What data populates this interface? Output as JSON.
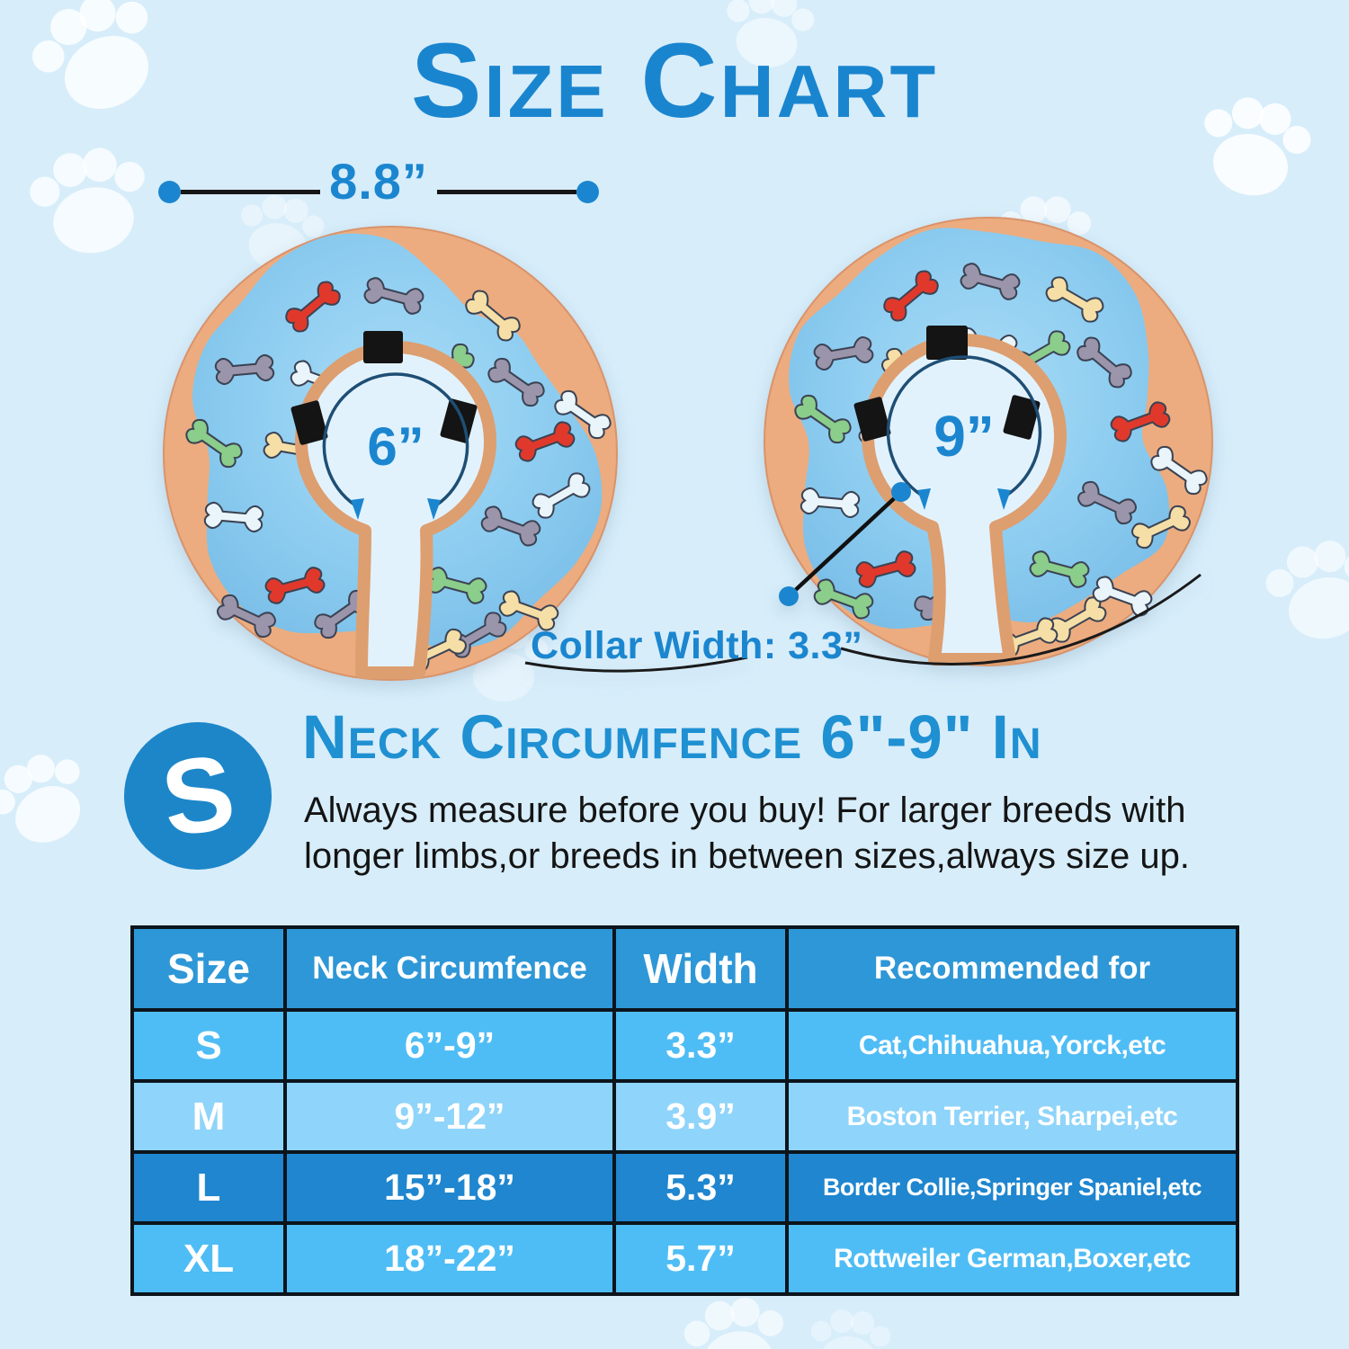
{
  "page": {
    "title": "Size Chart",
    "background_color": "#d7edfa",
    "accent_color": "#1b86cf"
  },
  "hero": {
    "outer_width": "8.8”",
    "left_donut": {
      "inner_circumference": "6”"
    },
    "right_donut": {
      "inner_circumference": "9”"
    },
    "collar_width_label": "Collar Width: 3.3”"
  },
  "size_info": {
    "badge": "S",
    "heading": "Neck Circumfence 6\"-9\" In",
    "description": "Always measure before you buy! For larger breeds with longer limbs,or breeds in between sizes,always size up."
  },
  "chart_data": {
    "type": "table",
    "columns": [
      "Size",
      "Neck Circumfence",
      "Width",
      "Recommended for"
    ],
    "rows": [
      [
        "S",
        "6”-9”",
        "3.3”",
        "Cat,Chihuahua,Yorck,etc"
      ],
      [
        "M",
        "9”-12”",
        "3.9”",
        "Boston Terrier, Sharpei,etc"
      ],
      [
        "L",
        "15”-18”",
        "5.3”",
        "Border Collie,Springer Spaniel,etc"
      ],
      [
        "XL",
        "18”-22”",
        "5.7”",
        "Rottweiler German,Boxer,etc"
      ]
    ],
    "row_colors": [
      "#4fbdf5",
      "#8fd4fa",
      "#1f86cf",
      "#4fbdf5"
    ],
    "header_color": "#2e97d7"
  }
}
